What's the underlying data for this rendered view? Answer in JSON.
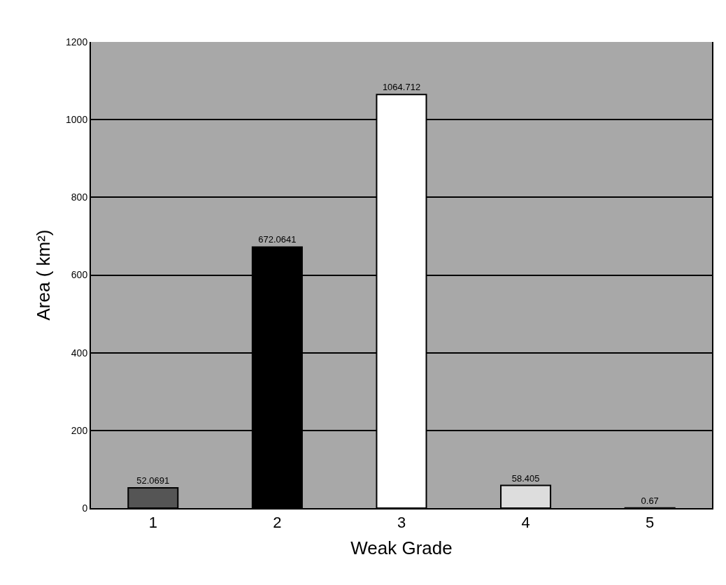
{
  "chart_data": {
    "type": "bar",
    "xlabel": "Weak Grade",
    "ylabel": "Area ( km²)",
    "categories": [
      "1",
      "2",
      "3",
      "4",
      "5"
    ],
    "values": [
      52.0691,
      672.0641,
      1064.712,
      58.405,
      0.67
    ],
    "value_labels": [
      "52.0691",
      "672.0641",
      "1064.712",
      "58.405",
      "0.67"
    ],
    "colors": [
      "#555555",
      "#000000",
      "#ffffff",
      "#dddddd",
      "#888888"
    ],
    "ylim": [
      0,
      1200
    ],
    "yticks": [
      0,
      200,
      400,
      600,
      800,
      1000,
      1200
    ],
    "grid": "y"
  }
}
